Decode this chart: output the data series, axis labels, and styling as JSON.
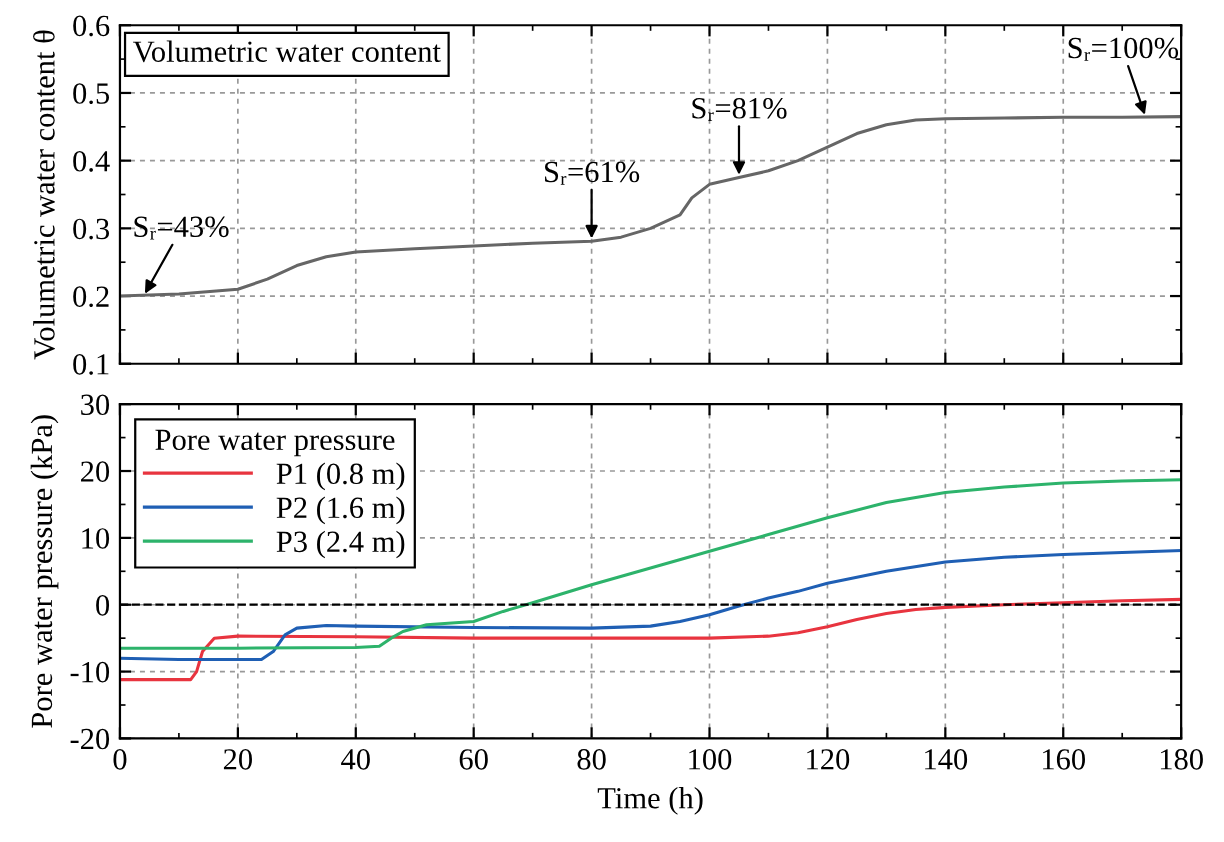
{
  "chart_data": [
    {
      "type": "line",
      "ylabel": "Volumetric water content θ",
      "legend_title": "Volumetric water content",
      "grid": true,
      "tick_labels": "y",
      "xlim": [
        0,
        180
      ],
      "xticks": [
        0,
        20,
        40,
        60,
        80,
        100,
        120,
        140,
        160,
        180
      ],
      "ylim": [
        0.1,
        0.6
      ],
      "yticks": [
        0.1,
        0.2,
        0.3,
        0.4,
        0.5,
        0.6
      ],
      "series": [
        {
          "color": "#666666",
          "x": [
            0,
            10,
            20,
            25,
            30,
            35,
            40,
            50,
            60,
            70,
            80,
            85,
            90,
            95,
            97,
            100,
            105,
            110,
            115,
            120,
            125,
            130,
            135,
            140,
            150,
            160,
            170,
            180
          ],
          "values": [
            0.2,
            0.203,
            0.21,
            0.225,
            0.245,
            0.258,
            0.265,
            0.27,
            0.274,
            0.278,
            0.281,
            0.287,
            0.3,
            0.32,
            0.345,
            0.365,
            0.375,
            0.385,
            0.4,
            0.42,
            0.44,
            0.453,
            0.46,
            0.462,
            0.463,
            0.464,
            0.464,
            0.465
          ]
        }
      ],
      "annotations": [
        {
          "text": "Sᵣ=43%",
          "x": 4,
          "y": 0.2
        },
        {
          "text": "Sᵣ=61%",
          "x": 80,
          "y": 0.281
        },
        {
          "text": "Sᵣ=81%",
          "x": 105,
          "y": 0.375
        },
        {
          "text": "Sᵣ=100%",
          "x": 174,
          "y": 0.464
        }
      ]
    },
    {
      "type": "line",
      "xlabel": "Time (h)",
      "ylabel": "Pore water pressure (kPa)",
      "legend_title": "Pore water pressure",
      "legend": "top left",
      "grid": true,
      "xlim": [
        0,
        180
      ],
      "xticks": [
        0,
        20,
        40,
        60,
        80,
        100,
        120,
        140,
        160,
        180
      ],
      "ylim": [
        -20,
        30
      ],
      "yticks": [
        -20,
        -10,
        0,
        10,
        20,
        30
      ],
      "ref_lines": [
        {
          "axis": "y",
          "value": 0,
          "color": "#000000",
          "line_style": "dashed"
        }
      ],
      "series": [
        {
          "name": "P1 (0.8 m)",
          "color": "#e8343f",
          "x": [
            0,
            12,
            13,
            14,
            16,
            20,
            40,
            60,
            80,
            100,
            110,
            115,
            120,
            125,
            130,
            135,
            140,
            150,
            160,
            170,
            180
          ],
          "values": [
            -11.2,
            -11.2,
            -10,
            -7,
            -5,
            -4.7,
            -4.8,
            -5,
            -5,
            -5,
            -4.7,
            -4.2,
            -3.3,
            -2.2,
            -1.3,
            -0.7,
            -0.4,
            0,
            0.3,
            0.6,
            0.8
          ]
        },
        {
          "name": "P2 (1.6 m)",
          "color": "#1f5fb4",
          "x": [
            0,
            10,
            20,
            24,
            26,
            28,
            30,
            35,
            40,
            60,
            80,
            90,
            95,
            100,
            105,
            110,
            115,
            120,
            130,
            140,
            150,
            160,
            170,
            180
          ],
          "values": [
            -8,
            -8.2,
            -8.2,
            -8.2,
            -7,
            -4.5,
            -3.5,
            -3.1,
            -3.2,
            -3.4,
            -3.5,
            -3.2,
            -2.5,
            -1.5,
            -0.2,
            1,
            2,
            3.2,
            5,
            6.4,
            7.1,
            7.5,
            7.8,
            8.1
          ]
        },
        {
          "name": "P3 (2.4 m)",
          "color": "#2db36b",
          "x": [
            0,
            20,
            40,
            44,
            46,
            48,
            52,
            60,
            65,
            70,
            80,
            90,
            100,
            110,
            120,
            130,
            140,
            150,
            160,
            170,
            180
          ],
          "values": [
            -6.5,
            -6.5,
            -6.4,
            -6.2,
            -5,
            -4,
            -3,
            -2.5,
            -1,
            0.3,
            3,
            5.5,
            8,
            10.5,
            13,
            15.3,
            16.8,
            17.6,
            18.2,
            18.5,
            18.7
          ]
        }
      ]
    }
  ]
}
